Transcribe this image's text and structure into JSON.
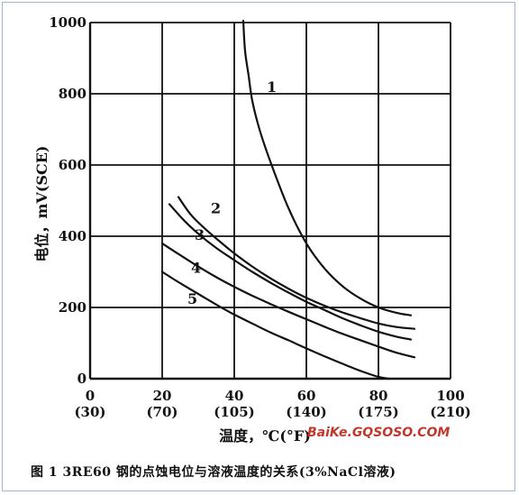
{
  "chart_data": {
    "type": "line",
    "title": "",
    "xlabel": "温度，℃(°F)",
    "ylabel": "电位，mV(SCE)",
    "xlim": [
      0,
      100
    ],
    "ylim": [
      0,
      1000
    ],
    "grid": true,
    "x_ticks": [
      {
        "value": 0,
        "label": "0",
        "sub": "(30)"
      },
      {
        "value": 20,
        "label": "20",
        "sub": "(70)"
      },
      {
        "value": 40,
        "label": "40",
        "sub": "(105)"
      },
      {
        "value": 60,
        "label": "60",
        "sub": "(140)"
      },
      {
        "value": 80,
        "label": "80",
        "sub": "(175)"
      },
      {
        "value": 100,
        "label": "100",
        "sub": "(210)"
      }
    ],
    "y_ticks": [
      {
        "value": 0,
        "label": "0"
      },
      {
        "value": 200,
        "label": "200"
      },
      {
        "value": 400,
        "label": "400"
      },
      {
        "value": 600,
        "label": "600"
      },
      {
        "value": 800,
        "label": "800"
      },
      {
        "value": 1000,
        "label": "1000"
      }
    ],
    "series": [
      {
        "name": "1",
        "x": [
          42.5,
          43,
          44,
          45,
          47,
          50,
          55,
          60,
          65,
          70,
          75,
          80,
          85,
          89
        ],
        "y": [
          1005,
          920,
          850,
          780,
          700,
          610,
          480,
          380,
          310,
          260,
          225,
          200,
          185,
          178
        ]
      },
      {
        "name": "2",
        "x": [
          24.5,
          28,
          32,
          36,
          40,
          45,
          50,
          55,
          60,
          65,
          70,
          75,
          80,
          85,
          90
        ],
        "y": [
          510,
          460,
          420,
          385,
          352,
          315,
          282,
          253,
          227,
          205,
          186,
          170,
          155,
          145,
          140
        ]
      },
      {
        "name": "3",
        "x": [
          22,
          26,
          30,
          35,
          40,
          45,
          50,
          55,
          60,
          65,
          70,
          75,
          80,
          85,
          89
        ],
        "y": [
          490,
          445,
          407,
          367,
          333,
          300,
          270,
          242,
          216,
          193,
          170,
          150,
          132,
          118,
          110
        ]
      },
      {
        "name": "4",
        "x": [
          20,
          25,
          30,
          35,
          40,
          45,
          50,
          55,
          60,
          65,
          70,
          75,
          80,
          85,
          90
        ],
        "y": [
          380,
          347,
          315,
          285,
          258,
          233,
          210,
          188,
          167,
          146,
          126,
          108,
          90,
          73,
          60
        ]
      },
      {
        "name": "5",
        "x": [
          20,
          25,
          30,
          35,
          40,
          45,
          50,
          55,
          60,
          65,
          70,
          75,
          80,
          83
        ],
        "y": [
          300,
          268,
          238,
          208,
          180,
          155,
          130,
          108,
          85,
          63,
          42,
          22,
          5,
          0
        ]
      }
    ],
    "curve_labels": [
      {
        "text": "1",
        "x": 49,
        "y": 805
      },
      {
        "text": "2",
        "x": 33.5,
        "y": 465
      },
      {
        "text": "3",
        "x": 29,
        "y": 390
      },
      {
        "text": "4",
        "x": 28,
        "y": 298
      },
      {
        "text": "5",
        "x": 27,
        "y": 210
      }
    ]
  },
  "watermark": "BaiKe.GQSOSO.COM",
  "caption": "图 1 3RE60 钢的点蚀电位与溶液温度的关系(3%NaCl溶液)"
}
